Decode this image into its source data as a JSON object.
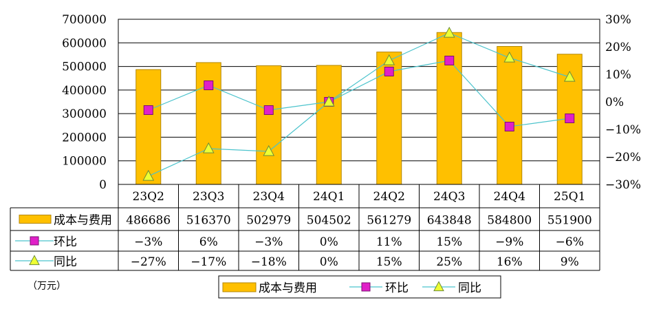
{
  "chart_data": {
    "type": "bar",
    "unit_note": "（万元）",
    "categories": [
      "23Q2",
      "23Q3",
      "23Q4",
      "24Q1",
      "24Q2",
      "24Q3",
      "24Q4",
      "25Q1"
    ],
    "series": [
      {
        "name": "成本与费用",
        "legend_label": "成本与费用",
        "axis": "left",
        "kind": "bar",
        "values": [
          486686,
          516370,
          502979,
          504502,
          561279,
          643848,
          584800,
          551900
        ],
        "labels": [
          "486686",
          "516370",
          "502979",
          "504502",
          "561279",
          "643848",
          "584800",
          "551900"
        ]
      },
      {
        "name": "环比",
        "legend_label": "环比",
        "axis": "right",
        "kind": "line",
        "marker": "square",
        "values": [
          -3,
          6,
          -3,
          0,
          11,
          15,
          -9,
          -6
        ],
        "labels": [
          "-3%",
          "6%",
          "-3%",
          "0%",
          "11%",
          "15%",
          "-9%",
          "-6%"
        ]
      },
      {
        "name": "同比",
        "legend_label": "同比",
        "axis": "right",
        "kind": "line",
        "marker": "triangle",
        "values": [
          -27,
          -17,
          -18,
          0,
          15,
          25,
          16,
          9
        ],
        "labels": [
          "-27%",
          "-17%",
          "-18%",
          "0%",
          "15%",
          "25%",
          "16%",
          "9%"
        ]
      }
    ],
    "left_axis": {
      "ylim": [
        0,
        700000
      ],
      "ticks": [
        0,
        100000,
        200000,
        300000,
        400000,
        500000,
        600000,
        700000
      ],
      "tick_labels": [
        "0",
        "100000",
        "200000",
        "300000",
        "400000",
        "500000",
        "600000",
        "700000"
      ]
    },
    "right_axis": {
      "ylim": [
        -30,
        30
      ],
      "ticks": [
        -30,
        -20,
        -10,
        0,
        10,
        20,
        30
      ],
      "tick_labels": [
        "-30%",
        "-20%",
        "-10%",
        "0%",
        "10%",
        "20%",
        "30%"
      ]
    },
    "legend_position": "bottom",
    "grid": "horizontal",
    "data_table": true,
    "colors": {
      "bar_fill": "#FFC000",
      "bar_edge": "#B38600",
      "line": "#4BC3CC",
      "square_marker": "#E020C8",
      "triangle_marker": "#EEFF33"
    }
  }
}
